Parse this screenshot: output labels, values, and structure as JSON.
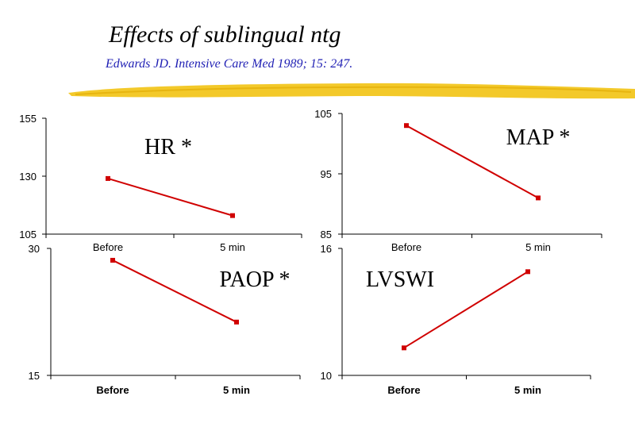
{
  "slide": {
    "title": "Effects of sublingual ntg",
    "subtitle": "Edwards JD. Intensive Care Med 1989; 15: 247.",
    "title_color": "#000000",
    "subtitle_color": "#1f1fb4",
    "highlight_color": "#f2c418"
  },
  "chart_data": [
    {
      "type": "line",
      "label": "HR *",
      "categories": [
        "Before",
        "5 min"
      ],
      "values": [
        129,
        113
      ],
      "ylim": [
        105,
        155
      ],
      "yticks": [
        105,
        130,
        155
      ],
      "color": "#d00000"
    },
    {
      "type": "line",
      "label": "MAP *",
      "categories": [
        "Before",
        "5 min"
      ],
      "values": [
        103,
        91
      ],
      "ylim": [
        85,
        105
      ],
      "yticks": [
        85,
        95,
        105
      ],
      "color": "#d00000"
    },
    {
      "type": "line",
      "label": "PAOP *",
      "categories": [
        "Before",
        "5 min"
      ],
      "values": [
        28.6,
        21.3
      ],
      "ylim": [
        15,
        30
      ],
      "yticks": [
        15,
        30
      ],
      "color": "#d00000"
    },
    {
      "type": "line",
      "label": "LVSWI",
      "categories": [
        "Before",
        "5 min"
      ],
      "values": [
        11.3,
        14.9
      ],
      "ylim": [
        10,
        16
      ],
      "yticks": [
        10,
        16
      ],
      "color": "#d00000"
    }
  ]
}
